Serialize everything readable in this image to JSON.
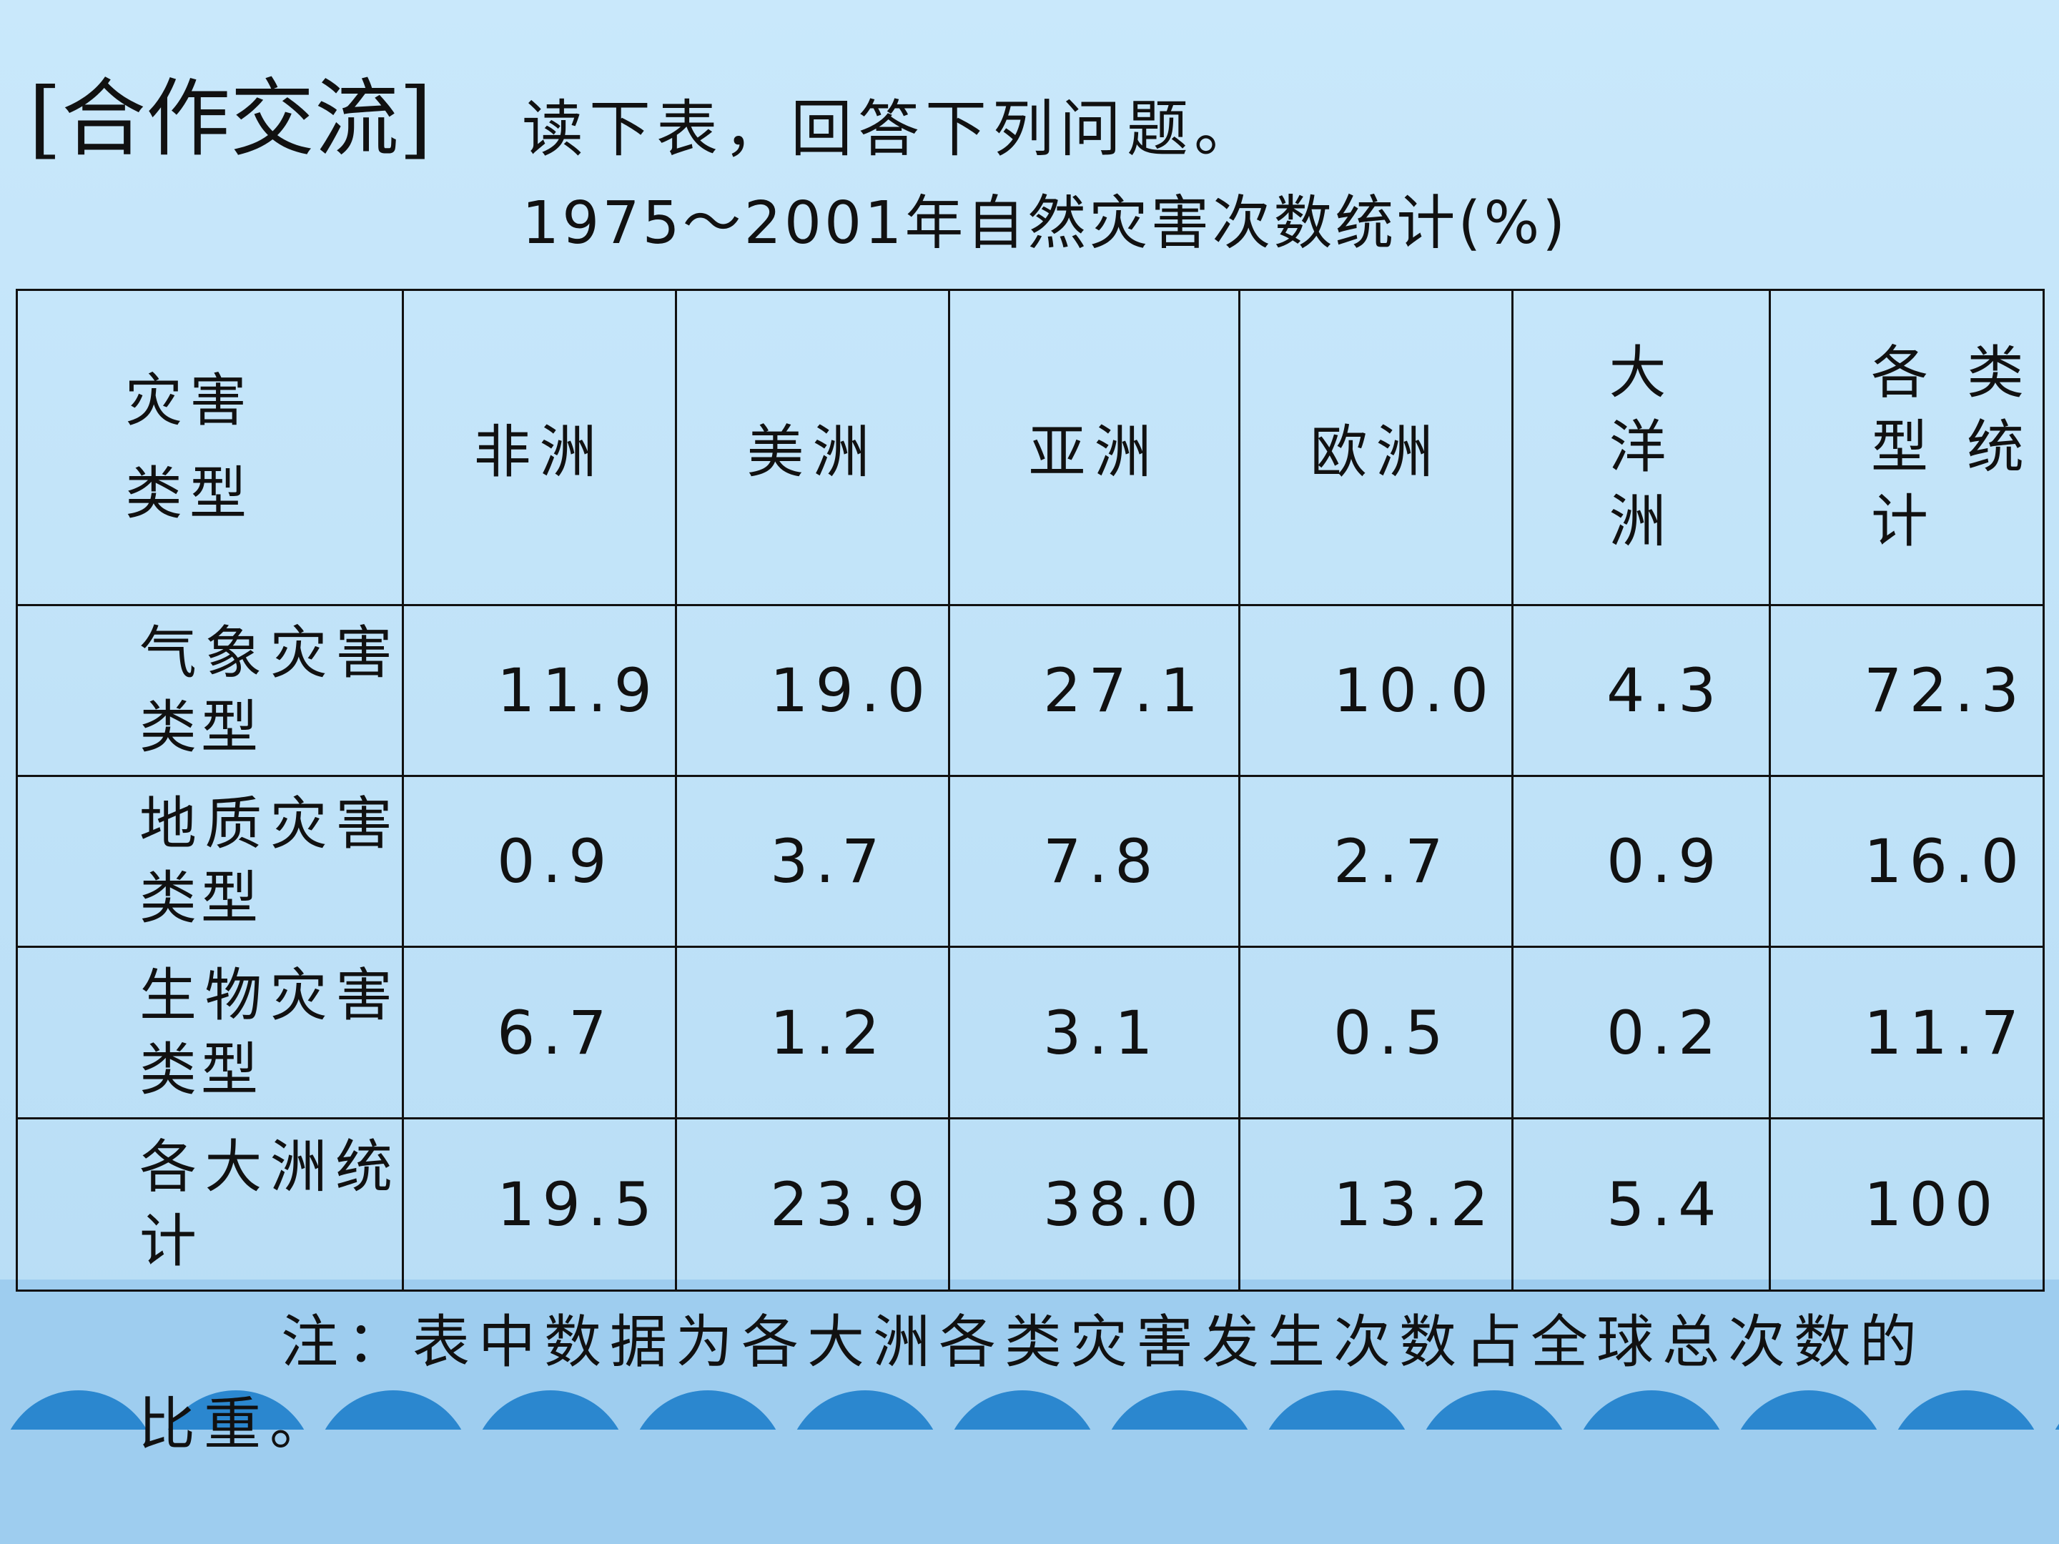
{
  "header": {
    "title": "[合作交流]",
    "instruction": "读下表，回答下列问题。"
  },
  "table": {
    "caption": "1975～2001年自然灾害次数统计(%)",
    "header": [
      "灾害类型",
      "非洲",
      "美洲",
      "亚洲",
      "欧洲",
      "大洋洲",
      "各类型统计"
    ],
    "rows": [
      [
        "气象灾害类型",
        "11.9",
        "19.0",
        "27.1",
        "10.0",
        "4.3",
        "72.3"
      ],
      [
        "地质灾害类型",
        "0.9",
        "3.7",
        "7.8",
        "2.7",
        "0.9",
        "16.0"
      ],
      [
        "生物灾害类型",
        "6.7",
        "1.2",
        "3.1",
        "0.5",
        "0.2",
        "11.7"
      ],
      [
        "各大洲统计",
        "19.5",
        "23.9",
        "38.0",
        "13.2",
        "5.4",
        "100"
      ]
    ]
  },
  "note": "注：表中数据为各大洲各类灾害发生次数占全球总次数的比重。"
}
